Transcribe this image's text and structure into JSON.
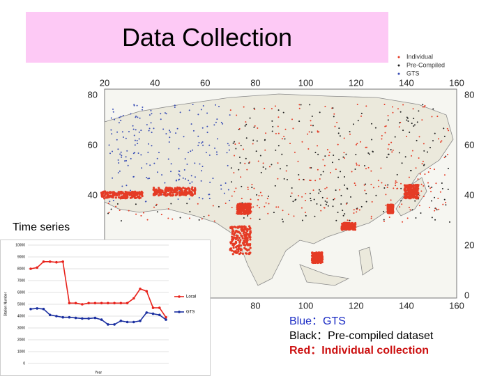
{
  "title": "Data Collection",
  "map": {
    "legend": [
      "Individual",
      "Pre-Compiled",
      "GTS"
    ],
    "xlim": [
      20,
      160
    ],
    "xticks": [
      20,
      40,
      60,
      80,
      100,
      120,
      140,
      160
    ],
    "ylim": [
      0,
      80
    ],
    "yticks": [
      80,
      60,
      40,
      20,
      0
    ]
  },
  "inset_label": "Time series",
  "inset_chart": {
    "type": "line",
    "y_label": "Station Number",
    "x_label": "Year",
    "ylim": [
      0,
      10000
    ],
    "yticks": [
      0,
      1000,
      2000,
      3000,
      4000,
      5000,
      6000,
      7000,
      8000,
      9000,
      10000
    ],
    "series": [
      {
        "name": "Local",
        "color": "#e8221b",
        "values": [
          8000,
          8100,
          8600,
          8600,
          8550,
          8600,
          5100,
          5100,
          5000,
          5100,
          5100,
          5100,
          5100,
          5100,
          5100,
          5100,
          5500,
          6300,
          6100,
          4700,
          4700,
          3900
        ]
      },
      {
        "name": "GTS",
        "color": "#1a2fa0",
        "values": [
          4600,
          4650,
          4600,
          4100,
          4000,
          3900,
          3900,
          3850,
          3800,
          3800,
          3850,
          3700,
          3300,
          3300,
          3600,
          3500,
          3500,
          3600,
          4300,
          4200,
          4100,
          3700
        ]
      }
    ]
  },
  "notes": [
    {
      "text": "Blue：GTS",
      "color": "#1a2bc4"
    },
    {
      "text": "Black：Pre-compiled dataset",
      "color": "#000000"
    },
    {
      "text": "Red：Individual collection",
      "color": "#cc1111"
    }
  ]
}
